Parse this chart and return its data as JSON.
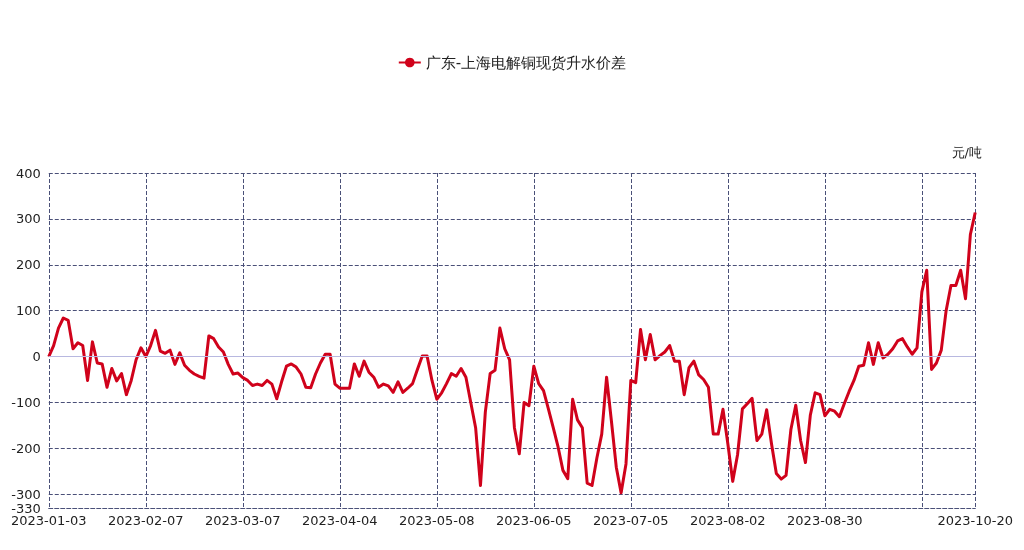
{
  "chart_data": {
    "type": "line",
    "title": null,
    "ylabel": "元/吨",
    "categories": [
      "2023-01-03",
      null,
      null,
      null,
      null,
      null,
      null,
      null,
      null,
      null,
      null,
      null,
      null,
      null,
      null,
      null,
      null,
      null,
      null,
      null,
      "2023-02-07",
      null,
      null,
      null,
      null,
      null,
      null,
      null,
      null,
      null,
      null,
      null,
      null,
      null,
      null,
      null,
      null,
      null,
      null,
      null,
      "2023-03-07",
      null,
      null,
      null,
      null,
      null,
      null,
      null,
      null,
      null,
      null,
      null,
      null,
      null,
      null,
      null,
      null,
      null,
      null,
      null,
      "2023-04-04",
      null,
      null,
      null,
      null,
      null,
      null,
      null,
      null,
      null,
      null,
      null,
      null,
      null,
      null,
      null,
      null,
      null,
      null,
      null,
      "2023-05-08",
      null,
      null,
      null,
      null,
      null,
      null,
      null,
      null,
      null,
      null,
      null,
      null,
      null,
      null,
      null,
      null,
      null,
      null,
      null,
      "2023-06-05",
      null,
      null,
      null,
      null,
      null,
      null,
      null,
      null,
      null,
      null,
      null,
      null,
      null,
      null,
      null,
      null,
      null,
      null,
      null,
      "2023-07-05",
      null,
      null,
      null,
      null,
      null,
      null,
      null,
      null,
      null,
      null,
      null,
      null,
      null,
      null,
      null,
      null,
      null,
      null,
      null,
      "2023-08-02",
      null,
      null,
      null,
      null,
      null,
      null,
      null,
      null,
      null,
      null,
      null,
      null,
      null,
      null,
      null,
      null,
      null,
      null,
      null,
      "2023-08-30",
      null,
      null,
      null,
      null,
      null,
      null,
      null,
      null,
      null,
      null,
      null,
      null,
      null,
      null,
      null,
      null,
      null,
      null,
      null,
      null,
      null,
      null,
      null,
      null,
      null,
      null,
      null,
      null,
      null,
      null,
      "2023-10-20"
    ],
    "series": [
      {
        "name": "广东-上海电解铜现货升水价差",
        "color": "#d0021b",
        "values": [
          0,
          24,
          62,
          84,
          79,
          17,
          30,
          24,
          -52,
          32,
          -14,
          -16,
          -67,
          -26,
          -53,
          -37,
          -83,
          -52,
          -7,
          19,
          0,
          24,
          57,
          12,
          7,
          14,
          -17,
          8,
          -19,
          -30,
          -38,
          -43,
          -47,
          45,
          39,
          21,
          10,
          -17,
          -38,
          -36,
          -46,
          -52,
          -63,
          -60,
          -63,
          -52,
          -60,
          -92,
          -55,
          -21,
          -16,
          -23,
          -38,
          -67,
          -68,
          -38,
          -14,
          5,
          5,
          -60,
          -69,
          -69,
          -69,
          -16,
          -43,
          -10,
          -34,
          -45,
          -67,
          -60,
          -64,
          -78,
          -55,
          -78,
          -69,
          -59,
          -28,
          1,
          1,
          -52,
          -93,
          -79,
          -59,
          -37,
          -43,
          -26,
          -45,
          -100,
          -155,
          -281,
          -121,
          -37,
          -30,
          62,
          17,
          -7,
          -155,
          -212,
          -100,
          -107,
          -21,
          -59,
          -74,
          -114,
          -155,
          -197,
          -248,
          -266,
          -93,
          -138,
          -155,
          -276,
          -281,
          -221,
          -169,
          -45,
          -141,
          -241,
          -297,
          -234,
          -52,
          -57,
          59,
          -7,
          48,
          -7,
          2,
          10,
          24,
          -10,
          -10,
          -83,
          -24,
          -10,
          -40,
          -50,
          -67,
          -169,
          -169,
          -115,
          -190,
          -272,
          -214,
          -114,
          -103,
          -91,
          -183,
          -169,
          -116,
          -190,
          -255,
          -267,
          -259,
          -159,
          -106,
          -183,
          -231,
          -128,
          -79,
          -83,
          -129,
          -115,
          -119,
          -131,
          -103,
          -76,
          -52,
          -21,
          -19,
          30,
          -17,
          30,
          -3,
          5,
          17,
          34,
          39,
          21,
          5,
          19,
          141,
          188,
          -28,
          -14,
          14,
          100,
          155,
          155,
          188,
          126,
          266,
          314
        ]
      }
    ],
    "ylim": [
      -330,
      400
    ],
    "yticks": [
      -330,
      -300,
      -200,
      -100,
      0,
      100,
      200,
      300,
      400
    ],
    "ref_lines": [
      {
        "axis": "y",
        "value": 0,
        "color": "#b8b8e0"
      }
    ],
    "grid": true,
    "legend": "top"
  }
}
